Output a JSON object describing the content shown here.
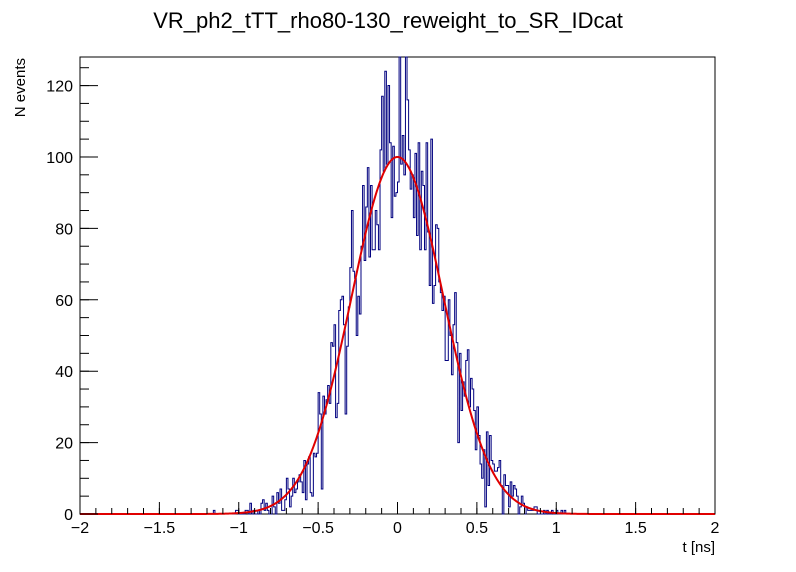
{
  "chart_data": {
    "type": "histogram",
    "title": "VR_ph2_tTT_rho80-130_reweight_to_SR_IDcat",
    "xlabel": "t [ns]",
    "ylabel": "N events",
    "xlim": [
      -2,
      2
    ],
    "ylim": [
      0,
      128
    ],
    "x_ticks": [
      -2,
      -1.5,
      -1,
      -0.5,
      0,
      0.5,
      1,
      1.5,
      2
    ],
    "x_tick_labels": [
      "−2",
      "−1.5",
      "−1",
      "−0.5",
      "0",
      "0.5",
      "1",
      "1.5",
      "2"
    ],
    "y_ticks": [
      0,
      20,
      40,
      60,
      80,
      100,
      120
    ],
    "y_tick_labels": [
      "0",
      "20",
      "40",
      "60",
      "80",
      "100",
      "120"
    ],
    "grid": false,
    "histogram": {
      "name": "data",
      "color": "#00007f",
      "bin_range": [
        -2,
        2
      ],
      "n_bins": 400,
      "fluctuation": 0.9,
      "seed": 20240607
    },
    "fit": {
      "name": "gaussian fit",
      "color": "#e00000",
      "function": "gaussian",
      "amplitude": 100,
      "mean": 0.0,
      "sigma": 0.29
    }
  }
}
